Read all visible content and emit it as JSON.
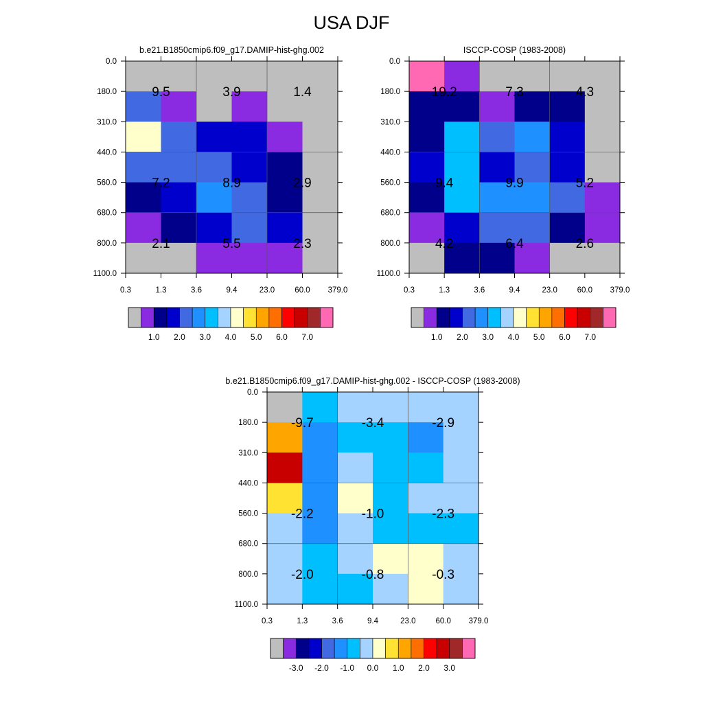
{
  "title": "USA DJF",
  "colors": {
    "abs": [
      "#bebebe",
      "#8a2be2",
      "#00008b",
      "#0000cd",
      "#4169e1",
      "#1e90ff",
      "#00bfff",
      "#a4d3ff",
      "#ffffcc",
      "#ffe232",
      "#ffa500",
      "#ff6e00",
      "#ff0000",
      "#c80000",
      "#a02828",
      "#ff69b4"
    ],
    "diff": [
      "#bebebe",
      "#8a2be2",
      "#00008b",
      "#0000cd",
      "#4169e1",
      "#1e90ff",
      "#00bfff",
      "#a4d3ff",
      "#ffffcc",
      "#ffe232",
      "#ffa500",
      "#ff6e00",
      "#ff0000",
      "#c80000",
      "#a02828",
      "#ff69b4"
    ]
  },
  "chart_data": [
    {
      "type": "heatmap",
      "title": "b.e21.B1850cmip6.f09_g17.DAMIP-hist-ghg.002",
      "x_ticks": [
        "0.3",
        "1.3",
        "3.6",
        "9.4",
        "23.0",
        "60.0",
        "379.0"
      ],
      "y_ticks": [
        "0.0",
        "180.0",
        "310.0",
        "440.0",
        "560.0",
        "680.0",
        "800.0",
        "1100.0"
      ],
      "cell_color_index": [
        [
          0,
          0,
          0,
          0,
          0,
          0
        ],
        [
          4,
          1,
          0,
          1,
          0,
          0
        ],
        [
          8,
          4,
          3,
          3,
          1,
          0
        ],
        [
          4,
          4,
          4,
          3,
          2,
          0
        ],
        [
          2,
          3,
          5,
          4,
          2,
          0
        ],
        [
          1,
          2,
          3,
          4,
          3,
          0
        ],
        [
          0,
          0,
          1,
          1,
          1,
          0
        ]
      ],
      "block_values": [
        [
          "9.5",
          "3.9",
          "1.4"
        ],
        [
          "7.2",
          "8.9",
          "2.9"
        ],
        [
          "2.1",
          "5.5",
          "2.3"
        ]
      ],
      "colorbar_labels": [
        "1.0",
        "2.0",
        "3.0",
        "4.0",
        "5.0",
        "6.0",
        "7.0"
      ]
    },
    {
      "type": "heatmap",
      "title": "ISCCP-COSP (1983-2008)",
      "x_ticks": [
        "0.3",
        "1.3",
        "3.6",
        "9.4",
        "23.0",
        "60.0",
        "379.0"
      ],
      "y_ticks": [
        "0.0",
        "180.0",
        "310.0",
        "440.0",
        "560.0",
        "680.0",
        "800.0",
        "1100.0"
      ],
      "cell_color_index": [
        [
          15,
          1,
          0,
          0,
          0,
          0
        ],
        [
          2,
          2,
          1,
          2,
          2,
          0
        ],
        [
          2,
          6,
          4,
          5,
          3,
          0
        ],
        [
          3,
          6,
          3,
          4,
          3,
          0
        ],
        [
          2,
          6,
          5,
          5,
          4,
          1
        ],
        [
          1,
          3,
          4,
          4,
          2,
          1
        ],
        [
          0,
          2,
          2,
          1,
          0,
          0
        ]
      ],
      "block_values": [
        [
          "19.2",
          "7.3",
          "4.3"
        ],
        [
          "9.4",
          "9.9",
          "5.2"
        ],
        [
          "4.2",
          "6.4",
          "2.6"
        ]
      ],
      "colorbar_labels": [
        "1.0",
        "2.0",
        "3.0",
        "4.0",
        "5.0",
        "6.0",
        "7.0"
      ]
    },
    {
      "type": "heatmap",
      "title": "b.e21.B1850cmip6.f09_g17.DAMIP-hist-ghg.002 - ISCCP-COSP (1983-2008)",
      "x_ticks": [
        "0.3",
        "1.3",
        "3.6",
        "9.4",
        "23.0",
        "60.0",
        "379.0"
      ],
      "y_ticks": [
        "0.0",
        "180.0",
        "310.0",
        "440.0",
        "560.0",
        "680.0",
        "800.0",
        "1100.0"
      ],
      "cell_color_index": [
        [
          0,
          6,
          7,
          7,
          7,
          7
        ],
        [
          10,
          5,
          6,
          6,
          5,
          7
        ],
        [
          13,
          5,
          7,
          6,
          6,
          7
        ],
        [
          9,
          5,
          8,
          6,
          7,
          7
        ],
        [
          7,
          5,
          7,
          6,
          6,
          6
        ],
        [
          7,
          6,
          7,
          8,
          8,
          7
        ],
        [
          7,
          6,
          6,
          7,
          8,
          7
        ]
      ],
      "block_values": [
        [
          "-9.7",
          "-3.4",
          "-2.9"
        ],
        [
          "-2.2",
          "-1.0",
          "-2.3"
        ],
        [
          "-2.0",
          "-0.8",
          "-0.3"
        ]
      ],
      "colorbar_labels": [
        "-3.0",
        "-2.0",
        "-1.0",
        "0.0",
        "1.0",
        "2.0",
        "3.0"
      ]
    }
  ]
}
